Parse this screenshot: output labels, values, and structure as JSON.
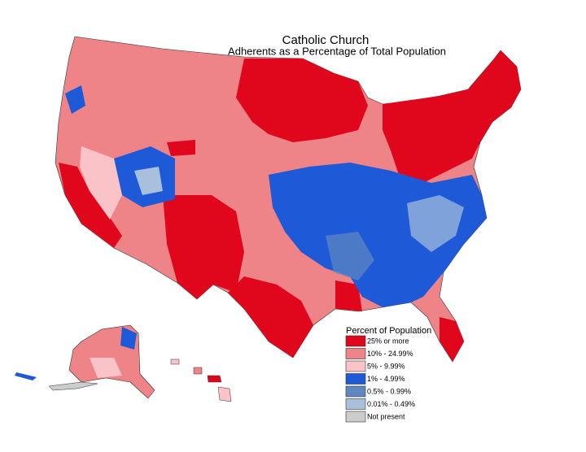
{
  "header": {
    "title": "Catholic Church",
    "subtitle": "Adherents as a Percentage of Total Population"
  },
  "legend": {
    "title": "Percent of Population",
    "items": [
      {
        "label": "25% or more",
        "color": "#e0061c"
      },
      {
        "label": "10% - 24.99%",
        "color": "#ee8388"
      },
      {
        "label": "5% - 9.99%",
        "color": "#fac3c8"
      },
      {
        "label": "1% - 4.99%",
        "color": "#1e5ad8"
      },
      {
        "label": "0.5% - 0.99%",
        "color": "#6088c0"
      },
      {
        "label": "0.01% - 0.49%",
        "color": "#a8c0dc"
      },
      {
        "label": "Not present",
        "color": "#cccccc"
      }
    ]
  }
}
